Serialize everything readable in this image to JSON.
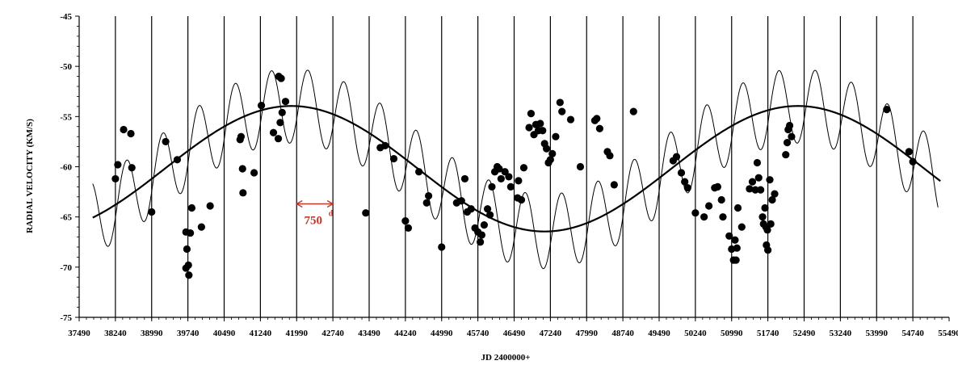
{
  "chart_data": {
    "type": "scatter",
    "xlabel": "JD 2400000+",
    "ylabel": "RADIAL VELOCITY (KM/S)",
    "xlim": [
      37490,
      55490
    ],
    "ylim": [
      -75,
      -45
    ],
    "x_ticks": [
      37490,
      38240,
      38990,
      39740,
      40490,
      41240,
      41990,
      42740,
      43490,
      44240,
      44990,
      45740,
      46490,
      47240,
      47990,
      48740,
      49490,
      50240,
      50990,
      51740,
      52490,
      53240,
      53990,
      54740,
      55490
    ],
    "x_tick_labels": [
      "37490",
      "38240",
      "38990",
      "39740",
      "40490",
      "41240",
      "41990",
      "42740",
      "43490",
      "44240",
      "44990",
      "45740",
      "46490",
      "47240",
      "47990",
      "48740",
      "49490",
      "50240",
      "50990",
      "51740",
      "52490",
      "53240",
      "53990",
      "54740",
      "55490"
    ],
    "y_ticks": [
      -75,
      -70,
      -65,
      -60,
      -55,
      -50,
      -45
    ],
    "y_tick_labels": [
      "-75",
      "-70",
      "-65",
      "-60",
      "-55",
      "-50",
      "-45"
    ],
    "grid": "vertical lines at every x tick except the first and last",
    "annotation": {
      "text": "750",
      "superscript": "d",
      "x_from": 41990,
      "x_to": 42740,
      "y": -63.7,
      "color": "#c0392b"
    },
    "long_period_fit": {
      "period": 10480,
      "mean": -60.2,
      "amplitude": 6.25,
      "phase_x": 41880,
      "x_range": [
        37770,
        55310
      ]
    },
    "short_period_component": {
      "period": 750,
      "amplitude": 3.7,
      "phase_x": 42220,
      "x_range": [
        37770,
        55260
      ]
    },
    "series": [
      {
        "style": "filled circle",
        "points": [
          [
            38240,
            -61.2
          ],
          [
            38290,
            -59.8
          ],
          [
            38410,
            -56.3
          ],
          [
            38560,
            -56.7
          ],
          [
            38580,
            -60.1
          ],
          [
            38990,
            -64.5
          ],
          [
            39280,
            -57.5
          ],
          [
            39520,
            -59.3
          ],
          [
            39700,
            -66.5
          ],
          [
            39700,
            -70.1
          ],
          [
            39720,
            -68.2
          ],
          [
            39750,
            -69.8
          ],
          [
            39760,
            -70.8
          ],
          [
            39790,
            -66.6
          ],
          [
            39820,
            -64.1
          ],
          [
            40020,
            -66.0
          ],
          [
            40200,
            -63.9
          ],
          [
            40820,
            -57.3
          ],
          [
            40840,
            -57.0
          ],
          [
            40870,
            -60.2
          ],
          [
            40880,
            -62.6
          ],
          [
            41110,
            -60.6
          ],
          [
            41260,
            -53.9
          ],
          [
            41510,
            -56.6
          ],
          [
            41610,
            -57.2
          ],
          [
            41620,
            -51.0
          ],
          [
            41650,
            -55.6
          ],
          [
            41670,
            -51.2
          ],
          [
            41690,
            -54.6
          ],
          [
            41760,
            -53.5
          ],
          [
            43420,
            -64.6
          ],
          [
            43720,
            -58.1
          ],
          [
            43820,
            -57.9
          ],
          [
            44000,
            -59.2
          ],
          [
            44240,
            -65.4
          ],
          [
            44300,
            -66.1
          ],
          [
            44520,
            -60.5
          ],
          [
            44680,
            -63.6
          ],
          [
            44720,
            -62.9
          ],
          [
            44990,
            -68.0
          ],
          [
            45300,
            -63.6
          ],
          [
            45400,
            -63.4
          ],
          [
            45470,
            -61.2
          ],
          [
            45520,
            -64.5
          ],
          [
            45600,
            -64.2
          ],
          [
            45680,
            -66.1
          ],
          [
            45740,
            -66.5
          ],
          [
            45790,
            -67.5
          ],
          [
            45820,
            -66.8
          ],
          [
            45870,
            -65.8
          ],
          [
            45940,
            -64.2
          ],
          [
            45990,
            -64.8
          ],
          [
            46030,
            -62.0
          ],
          [
            46090,
            -60.5
          ],
          [
            46140,
            -60.0
          ],
          [
            46180,
            -60.2
          ],
          [
            46220,
            -61.2
          ],
          [
            46300,
            -60.5
          ],
          [
            46380,
            -61.0
          ],
          [
            46420,
            -62.0
          ],
          [
            46560,
            -63.1
          ],
          [
            46580,
            -61.4
          ],
          [
            46640,
            -63.3
          ],
          [
            46690,
            -60.1
          ],
          [
            46800,
            -56.1
          ],
          [
            46840,
            -54.7
          ],
          [
            46900,
            -56.8
          ],
          [
            46940,
            -55.8
          ],
          [
            46990,
            -56.4
          ],
          [
            47030,
            -55.7
          ],
          [
            47080,
            -56.4
          ],
          [
            47120,
            -57.7
          ],
          [
            47160,
            -58.2
          ],
          [
            47200,
            -59.6
          ],
          [
            47240,
            -59.3
          ],
          [
            47280,
            -58.7
          ],
          [
            47350,
            -57.0
          ],
          [
            47440,
            -53.6
          ],
          [
            47480,
            -54.5
          ],
          [
            47660,
            -55.3
          ],
          [
            47860,
            -60.0
          ],
          [
            48160,
            -55.4
          ],
          [
            48200,
            -55.2
          ],
          [
            48260,
            -56.2
          ],
          [
            48420,
            -58.5
          ],
          [
            48470,
            -58.9
          ],
          [
            48560,
            -61.8
          ],
          [
            48960,
            -54.5
          ],
          [
            49780,
            -59.4
          ],
          [
            49850,
            -59.0
          ],
          [
            49950,
            -60.6
          ],
          [
            50020,
            -61.5
          ],
          [
            50080,
            -62.1
          ],
          [
            50240,
            -64.6
          ],
          [
            50420,
            -65.0
          ],
          [
            50520,
            -63.9
          ],
          [
            50640,
            -62.1
          ],
          [
            50700,
            -62.0
          ],
          [
            50780,
            -63.3
          ],
          [
            50810,
            -65.0
          ],
          [
            50940,
            -66.9
          ],
          [
            50990,
            -68.2
          ],
          [
            51030,
            -69.3
          ],
          [
            51060,
            -67.3
          ],
          [
            51080,
            -69.3
          ],
          [
            51100,
            -68.1
          ],
          [
            51120,
            -64.1
          ],
          [
            51200,
            -66.0
          ],
          [
            51360,
            -62.2
          ],
          [
            51420,
            -61.5
          ],
          [
            51480,
            -62.3
          ],
          [
            51520,
            -59.6
          ],
          [
            51550,
            -61.1
          ],
          [
            51590,
            -62.3
          ],
          [
            51630,
            -65.0
          ],
          [
            51650,
            -65.7
          ],
          [
            51680,
            -64.1
          ],
          [
            51700,
            -66.0
          ],
          [
            51710,
            -67.8
          ],
          [
            51730,
            -66.3
          ],
          [
            51740,
            -68.3
          ],
          [
            51780,
            -61.3
          ],
          [
            51800,
            -65.7
          ],
          [
            51830,
            -63.3
          ],
          [
            51880,
            -62.7
          ],
          [
            52110,
            -58.8
          ],
          [
            52140,
            -57.6
          ],
          [
            52160,
            -56.3
          ],
          [
            52190,
            -55.9
          ],
          [
            52230,
            -57.0
          ],
          [
            54200,
            -54.3
          ],
          [
            54660,
            -58.5
          ],
          [
            54740,
            -59.5
          ]
        ]
      }
    ]
  }
}
